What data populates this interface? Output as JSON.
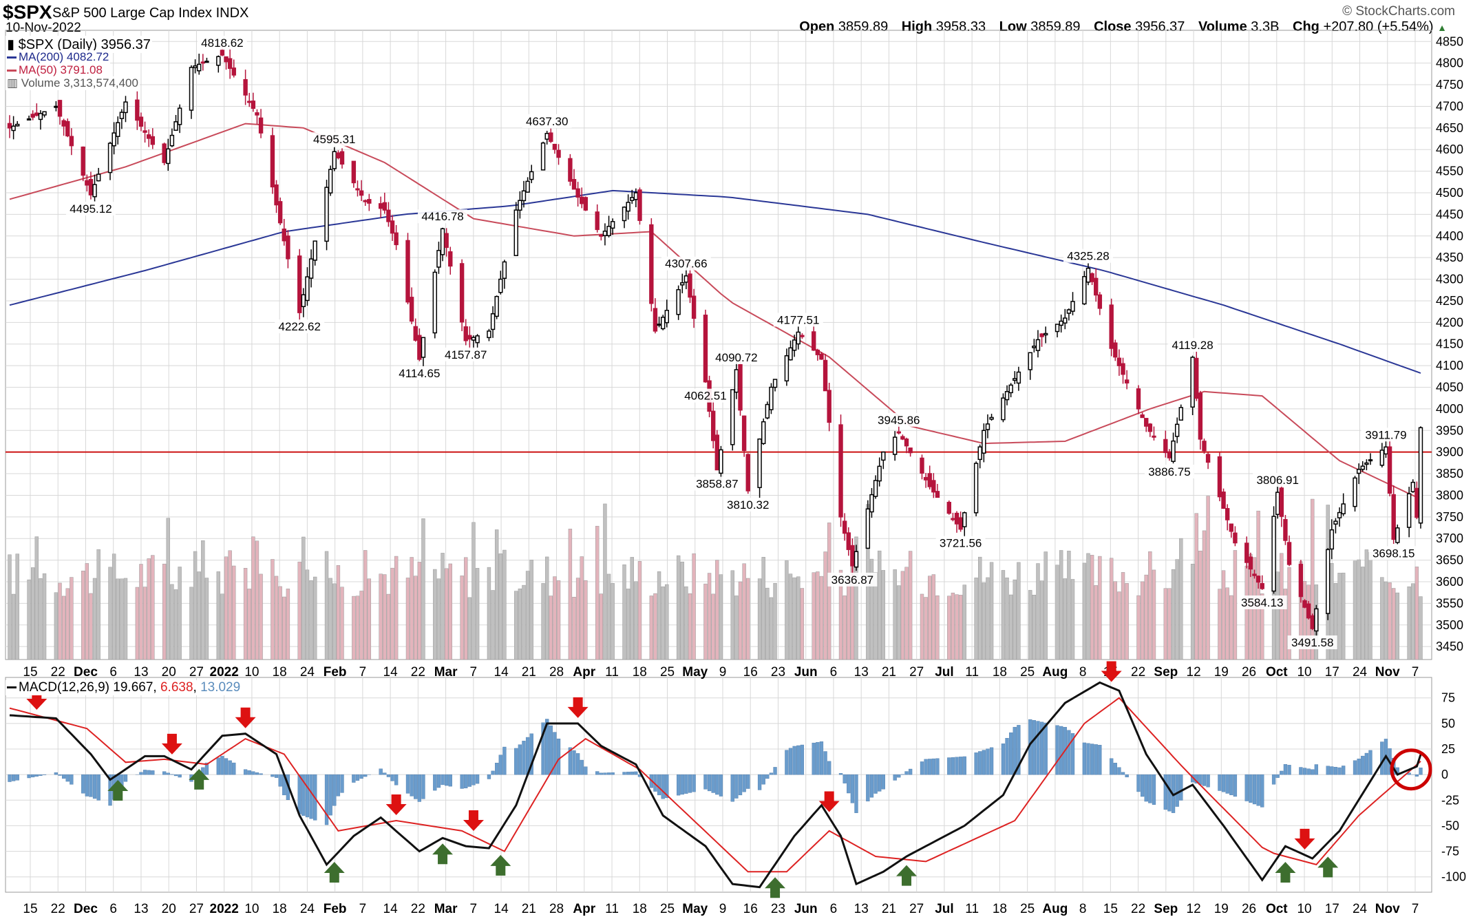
{
  "header": {
    "symbol": "$SPX",
    "name": "S&P 500 Large Cap Index",
    "exchange": "INDX",
    "date": "10-Nov-2022",
    "credit": "© StockCharts.com",
    "open_label": "Open",
    "open": "3859.89",
    "high_label": "High",
    "high": "3958.33",
    "low_label": "Low",
    "low": "3859.89",
    "close_label": "Close",
    "close": "3956.37",
    "volume_label": "Volume",
    "volume": "3.3B",
    "chg_label": "Chg",
    "chg": "+207.80 (+5.54%)"
  },
  "legend": {
    "price": "$SPX (Daily) 3956.37",
    "ma200": "MA(200) 4082.72",
    "ma50": "MA(50) 3791.08",
    "volume": "Volume 3,313,574,400",
    "macd_label": "MACD(12,26,9)",
    "macd_v1": "19.667",
    "macd_v2": "6.638",
    "macd_v3": "13.029"
  },
  "colors": {
    "up": "#000000",
    "down": "#b5143c",
    "ma200": "#2a3796",
    "ma50": "#c84a5a",
    "hline": "#cc1111",
    "vol_up": "#c0c0c0",
    "vol_down": "#e3b4bc",
    "hist": "#6a9ccc",
    "macd": "#111111",
    "signal": "#dd2222",
    "arrow_down": "#dd1111",
    "arrow_up": "#3d6e2e",
    "grid": "#d8d8d8"
  },
  "chart_data": {
    "type": "line",
    "price_axis": {
      "ylim": [
        3420,
        4860
      ],
      "ticks": [
        "3450",
        "3500",
        "3550",
        "3600",
        "3650",
        "3700",
        "3750",
        "3800",
        "3850",
        "3900",
        "3950",
        "4000",
        "4050",
        "4100",
        "4150",
        "4200",
        "4250",
        "4300",
        "4350",
        "4400",
        "4450",
        "4500",
        "4550",
        "4600",
        "4650",
        "4700",
        "4750",
        "4800",
        "4850"
      ]
    },
    "horizontal_line": 3900,
    "x_axis": {
      "date_range": [
        "2021-11-10",
        "2022-11-10"
      ],
      "ticks": [
        "15",
        "22",
        "Dec",
        "6",
        "13",
        "20",
        "27",
        "2022",
        "10",
        "18",
        "24",
        "Feb",
        "7",
        "14",
        "22",
        "Mar",
        "7",
        "14",
        "21",
        "28",
        "Apr",
        "11",
        "18",
        "25",
        "May",
        "9",
        "16",
        "23",
        "Jun",
        "6",
        "13",
        "21",
        "27",
        "Jul",
        "11",
        "18",
        "25",
        "Aug",
        "8",
        "15",
        "22",
        "Sep",
        "12",
        "19",
        "26",
        "Oct",
        "10",
        "17",
        "24",
        "Nov",
        "7"
      ],
      "bold_ticks": [
        "Dec",
        "2022",
        "Feb",
        "Mar",
        "Apr",
        "May",
        "Jun",
        "Jul",
        "Aug",
        "Sep",
        "Oct",
        "Nov"
      ]
    },
    "price_keypoints": [
      [
        "2021-11-10",
        4650
      ],
      [
        "2021-11-22",
        4700
      ],
      [
        "2021-12-01",
        4495.12
      ],
      [
        "2021-12-10",
        4710
      ],
      [
        "2021-12-20",
        4570
      ],
      [
        "2021-12-27",
        4790
      ],
      [
        "2022-01-04",
        4818.62
      ],
      [
        "2022-01-13",
        4680
      ],
      [
        "2022-01-24",
        4222.62
      ],
      [
        "2022-02-02",
        4595.31
      ],
      [
        "2022-02-10",
        4480
      ],
      [
        "2022-02-15",
        4460
      ],
      [
        "2022-02-18",
        4380
      ],
      [
        "2022-02-24",
        4114.65
      ],
      [
        "2022-03-02",
        4416.78
      ],
      [
        "2022-03-08",
        4157.87
      ],
      [
        "2022-03-14",
        4180
      ],
      [
        "2022-03-21",
        4460
      ],
      [
        "2022-03-29",
        4637.3
      ],
      [
        "2022-04-06",
        4490
      ],
      [
        "2022-04-12",
        4400
      ],
      [
        "2022-04-21",
        4500
      ],
      [
        "2022-04-26",
        4180
      ],
      [
        "2022-05-04",
        4307.66
      ],
      [
        "2022-05-09",
        4062.51
      ],
      [
        "2022-05-12",
        3858.87
      ],
      [
        "2022-05-17",
        4090.72
      ],
      [
        "2022-05-20",
        3810.32
      ],
      [
        "2022-05-26",
        4050
      ],
      [
        "2022-06-02",
        4177.51
      ],
      [
        "2022-06-08",
        4115
      ],
      [
        "2022-06-13",
        3750
      ],
      [
        "2022-06-16",
        3636.87
      ],
      [
        "2022-06-24",
        3900
      ],
      [
        "2022-06-28",
        3945.86
      ],
      [
        "2022-07-06",
        3820
      ],
      [
        "2022-07-14",
        3721.56
      ],
      [
        "2022-07-20",
        3950
      ],
      [
        "2022-07-28",
        4070
      ],
      [
        "2022-08-03",
        4160
      ],
      [
        "2022-08-10",
        4210
      ],
      [
        "2022-08-16",
        4325.28
      ],
      [
        "2022-08-22",
        4140
      ],
      [
        "2022-08-26",
        4060
      ],
      [
        "2022-08-31",
        3960
      ],
      [
        "2022-09-06",
        3886.75
      ],
      [
        "2022-09-12",
        4119.28
      ],
      [
        "2022-09-14",
        3930
      ],
      [
        "2022-09-23",
        3690
      ],
      [
        "2022-09-30",
        3584.13
      ],
      [
        "2022-10-04",
        3806.91
      ],
      [
        "2022-10-07",
        3640
      ],
      [
        "2022-10-13",
        3491.58
      ],
      [
        "2022-10-18",
        3720
      ],
      [
        "2022-10-25",
        3860
      ],
      [
        "2022-11-01",
        3911.79
      ],
      [
        "2022-11-03",
        3698.15
      ],
      [
        "2022-11-08",
        3830
      ],
      [
        "2022-11-09",
        3749
      ],
      [
        "2022-11-10",
        3956.37
      ]
    ],
    "ma200_keypoints": [
      [
        "2021-11-10",
        4240
      ],
      [
        "2021-12-15",
        4320
      ],
      [
        "2022-01-20",
        4410
      ],
      [
        "2022-02-20",
        4450
      ],
      [
        "2022-03-20",
        4470
      ],
      [
        "2022-04-15",
        4505
      ],
      [
        "2022-05-15",
        4490
      ],
      [
        "2022-06-20",
        4450
      ],
      [
        "2022-07-20",
        4385
      ],
      [
        "2022-08-20",
        4320
      ],
      [
        "2022-09-20",
        4240
      ],
      [
        "2022-10-20",
        4150
      ],
      [
        "2022-11-10",
        4082.72
      ]
    ],
    "ma50_keypoints": [
      [
        "2021-11-10",
        4485
      ],
      [
        "2021-12-10",
        4560
      ],
      [
        "2022-01-10",
        4660
      ],
      [
        "2022-01-25",
        4650
      ],
      [
        "2022-02-15",
        4570
      ],
      [
        "2022-03-10",
        4440
      ],
      [
        "2022-04-05",
        4400
      ],
      [
        "2022-04-25",
        4410
      ],
      [
        "2022-05-15",
        4250
      ],
      [
        "2022-06-10",
        4120
      ],
      [
        "2022-07-01",
        3960
      ],
      [
        "2022-07-20",
        3920
      ],
      [
        "2022-08-10",
        3925
      ],
      [
        "2022-09-01",
        4000
      ],
      [
        "2022-09-15",
        4040
      ],
      [
        "2022-09-30",
        4030
      ],
      [
        "2022-10-20",
        3880
      ],
      [
        "2022-11-10",
        3791.08
      ]
    ],
    "labels": [
      {
        "date": "2021-12-01",
        "value": 4495.12,
        "text": "4495.12",
        "pos": "below"
      },
      {
        "date": "2022-01-04",
        "value": 4818.62,
        "text": "4818.62",
        "pos": "above"
      },
      {
        "date": "2022-01-24",
        "value": 4222.62,
        "text": "4222.62",
        "pos": "below"
      },
      {
        "date": "2022-02-02",
        "value": 4595.31,
        "text": "4595.31",
        "pos": "above"
      },
      {
        "date": "2022-02-24",
        "value": 4114.65,
        "text": "4114.65",
        "pos": "below"
      },
      {
        "date": "2022-03-02",
        "value": 4416.78,
        "text": "4416.78",
        "pos": "above"
      },
      {
        "date": "2022-03-08",
        "value": 4157.87,
        "text": "4157.87",
        "pos": "below"
      },
      {
        "date": "2022-03-29",
        "value": 4637.3,
        "text": "4637.30",
        "pos": "above"
      },
      {
        "date": "2022-05-04",
        "value": 4307.66,
        "text": "4307.66",
        "pos": "above"
      },
      {
        "date": "2022-05-09",
        "value": 4062.51,
        "text": "4062.51",
        "pos": "below"
      },
      {
        "date": "2022-05-12",
        "value": 3858.87,
        "text": "3858.87",
        "pos": "below"
      },
      {
        "date": "2022-05-17",
        "value": 4090.72,
        "text": "4090.72",
        "pos": "above"
      },
      {
        "date": "2022-05-20",
        "value": 3810.32,
        "text": "3810.32",
        "pos": "below"
      },
      {
        "date": "2022-06-02",
        "value": 4177.51,
        "text": "4177.51",
        "pos": "above"
      },
      {
        "date": "2022-06-16",
        "value": 3636.87,
        "text": "3636.87",
        "pos": "below"
      },
      {
        "date": "2022-06-28",
        "value": 3945.86,
        "text": "3945.86",
        "pos": "above"
      },
      {
        "date": "2022-07-14",
        "value": 3721.56,
        "text": "3721.56",
        "pos": "below"
      },
      {
        "date": "2022-08-16",
        "value": 4325.28,
        "text": "4325.28",
        "pos": "above"
      },
      {
        "date": "2022-09-06",
        "value": 3886.75,
        "text": "3886.75",
        "pos": "below"
      },
      {
        "date": "2022-09-12",
        "value": 4119.28,
        "text": "4119.28",
        "pos": "above"
      },
      {
        "date": "2022-09-30",
        "value": 3584.13,
        "text": "3584.13",
        "pos": "below"
      },
      {
        "date": "2022-10-04",
        "value": 3806.91,
        "text": "3806.91",
        "pos": "above"
      },
      {
        "date": "2022-10-13",
        "value": 3491.58,
        "text": "3491.58",
        "pos": "below"
      },
      {
        "date": "2022-11-01",
        "value": 3911.79,
        "text": "3911.79",
        "pos": "above"
      },
      {
        "date": "2022-11-03",
        "value": 3698.15,
        "text": "3698.15",
        "pos": "below"
      }
    ],
    "macd_axis": {
      "ylim": [
        -115,
        95
      ],
      "ticks": [
        "75",
        "50",
        "25",
        "0",
        "-25",
        "-50",
        "-75",
        "-100"
      ]
    },
    "macd_keypoints": [
      [
        "2021-11-10",
        58
      ],
      [
        "2021-11-22",
        55
      ],
      [
        "2021-12-01",
        20
      ],
      [
        "2021-12-06",
        -5
      ],
      [
        "2021-12-15",
        18
      ],
      [
        "2021-12-20",
        18
      ],
      [
        "2021-12-27",
        5
      ],
      [
        "2022-01-04",
        38
      ],
      [
        "2022-01-10",
        40
      ],
      [
        "2022-01-18",
        20
      ],
      [
        "2022-01-24",
        -40
      ],
      [
        "2022-01-31",
        -88
      ],
      [
        "2022-02-07",
        -60
      ],
      [
        "2022-02-14",
        -42
      ],
      [
        "2022-02-24",
        -75
      ],
      [
        "2022-03-02",
        -62
      ],
      [
        "2022-03-08",
        -70
      ],
      [
        "2022-03-14",
        -72
      ],
      [
        "2022-03-21",
        -30
      ],
      [
        "2022-03-29",
        50
      ],
      [
        "2022-04-06",
        50
      ],
      [
        "2022-04-12",
        28
      ],
      [
        "2022-04-21",
        10
      ],
      [
        "2022-04-28",
        -40
      ],
      [
        "2022-05-09",
        -70
      ],
      [
        "2022-05-16",
        -107
      ],
      [
        "2022-05-23",
        -110
      ],
      [
        "2022-06-01",
        -60
      ],
      [
        "2022-06-08",
        -30
      ],
      [
        "2022-06-13",
        -60
      ],
      [
        "2022-06-17",
        -107
      ],
      [
        "2022-06-24",
        -95
      ],
      [
        "2022-06-30",
        -80
      ],
      [
        "2022-07-15",
        -50
      ],
      [
        "2022-07-25",
        -20
      ],
      [
        "2022-08-01",
        30
      ],
      [
        "2022-08-10",
        70
      ],
      [
        "2022-08-19",
        90
      ],
      [
        "2022-08-24",
        82
      ],
      [
        "2022-08-31",
        20
      ],
      [
        "2022-09-07",
        -20
      ],
      [
        "2022-09-12",
        -10
      ],
      [
        "2022-09-20",
        -50
      ],
      [
        "2022-09-30",
        -103
      ],
      [
        "2022-10-06",
        -70
      ],
      [
        "2022-10-13",
        -82
      ],
      [
        "2022-10-20",
        -55
      ],
      [
        "2022-11-01",
        18
      ],
      [
        "2022-11-04",
        0
      ],
      [
        "2022-11-09",
        8
      ],
      [
        "2022-11-10",
        19.667
      ]
    ],
    "signal_keypoints": [
      [
        "2021-11-10",
        65
      ],
      [
        "2021-11-30",
        45
      ],
      [
        "2021-12-10",
        12
      ],
      [
        "2021-12-20",
        15
      ],
      [
        "2021-12-31",
        10
      ],
      [
        "2022-01-10",
        35
      ],
      [
        "2022-01-20",
        20
      ],
      [
        "2022-02-03",
        -55
      ],
      [
        "2022-02-18",
        -45
      ],
      [
        "2022-03-07",
        -55
      ],
      [
        "2022-03-18",
        -75
      ],
      [
        "2022-04-01",
        15
      ],
      [
        "2022-04-08",
        35
      ],
      [
        "2022-04-22",
        5
      ],
      [
        "2022-05-06",
        -45
      ],
      [
        "2022-05-20",
        -95
      ],
      [
        "2022-05-30",
        -95
      ],
      [
        "2022-06-10",
        -55
      ],
      [
        "2022-06-22",
        -80
      ],
      [
        "2022-07-05",
        -85
      ],
      [
        "2022-07-28",
        -45
      ],
      [
        "2022-08-15",
        50
      ],
      [
        "2022-08-24",
        75
      ],
      [
        "2022-09-10",
        5
      ],
      [
        "2022-10-01",
        -75
      ],
      [
        "2022-10-14",
        -88
      ],
      [
        "2022-10-25",
        -40
      ],
      [
        "2022-11-10",
        13.029
      ]
    ],
    "signals": [
      {
        "date": "2021-11-17",
        "type": "sell"
      },
      {
        "date": "2021-12-08",
        "type": "buy"
      },
      {
        "date": "2021-12-22",
        "type": "sell"
      },
      {
        "date": "2021-12-29",
        "type": "buy"
      },
      {
        "date": "2022-01-10",
        "type": "sell"
      },
      {
        "date": "2022-02-02",
        "type": "buy"
      },
      {
        "date": "2022-02-18",
        "type": "sell"
      },
      {
        "date": "2022-03-02",
        "type": "buy"
      },
      {
        "date": "2022-03-10",
        "type": "sell"
      },
      {
        "date": "2022-03-17",
        "type": "buy"
      },
      {
        "date": "2022-04-06",
        "type": "sell"
      },
      {
        "date": "2022-05-27",
        "type": "buy"
      },
      {
        "date": "2022-06-10",
        "type": "sell"
      },
      {
        "date": "2022-06-30",
        "type": "buy"
      },
      {
        "date": "2022-08-22",
        "type": "sell"
      },
      {
        "date": "2022-10-06",
        "type": "buy"
      },
      {
        "date": "2022-10-11",
        "type": "sell"
      },
      {
        "date": "2022-10-17",
        "type": "buy"
      }
    ]
  }
}
